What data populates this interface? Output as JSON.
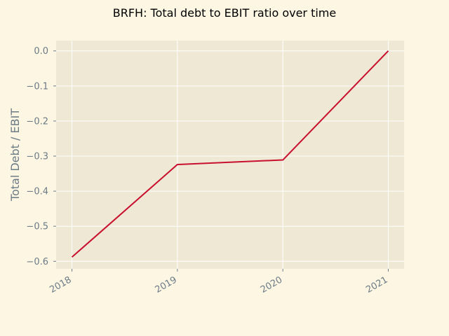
{
  "chart_data": {
    "type": "line",
    "title": "BRFH: Total debt to EBIT ratio over time",
    "xlabel": "",
    "ylabel": "Total Debt / EBIT",
    "x": [
      "2018",
      "2019",
      "2020",
      "2021"
    ],
    "series": [
      {
        "values": [
          -0.588,
          -0.324,
          -0.311,
          0.0
        ]
      }
    ],
    "yticks": [
      0.0,
      -0.1,
      -0.2,
      -0.3,
      -0.4,
      -0.5,
      -0.6
    ],
    "ytick_labels": [
      "0.0",
      "−0.1",
      "−0.2",
      "−0.3",
      "−0.4",
      "−0.5",
      "−0.6"
    ],
    "xlim": [
      2017.85,
      2021.15
    ],
    "ylim": [
      -0.6214,
      0.0294
    ],
    "grid": true,
    "colors": {
      "figure_background": "#fdf6e3",
      "plot_background": "#eee8d5",
      "grid": "#ffffff",
      "line": "#c8102e",
      "tick_text": "#6b7b86",
      "title_text": "#000000"
    }
  }
}
